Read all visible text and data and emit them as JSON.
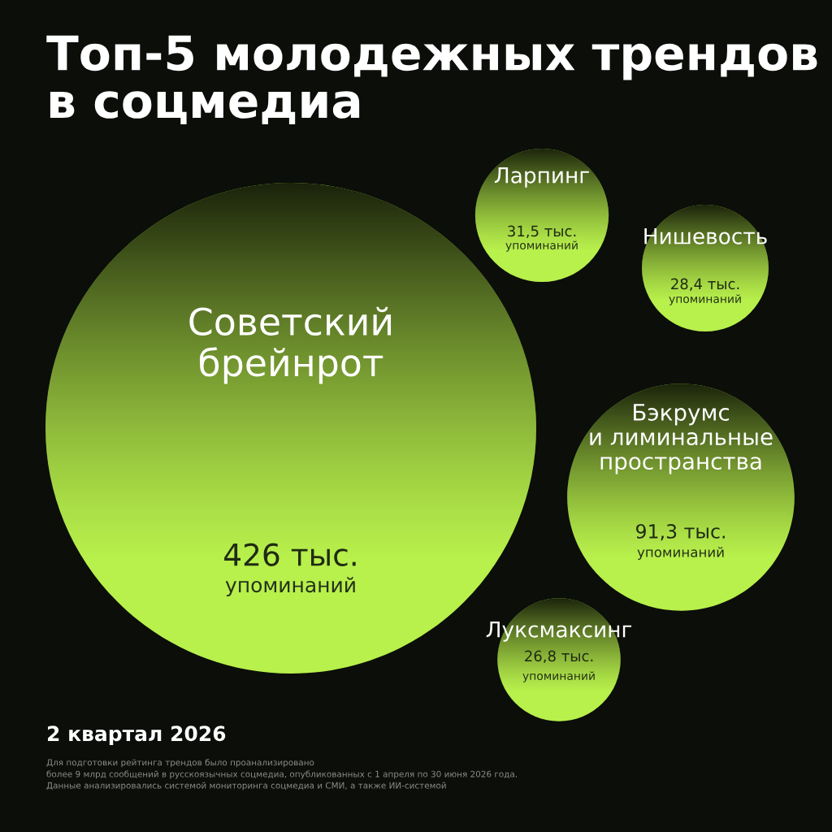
{
  "chart_data": {
    "type": "other",
    "title": "Топ-5 молодежных трендов\nв соцмедиа",
    "subtitle": "2 квартал 2026",
    "categories": [
      "Советский\nбрейнрот",
      "Бэкрумс\nи лиминальные\nпространства",
      "Ларпинг",
      "Нишевость",
      "Луксмаксинг"
    ],
    "values": [
      426,
      91.3,
      31.5,
      28.4,
      26.8
    ],
    "value_labels": [
      "426 тыс.\nупоминаний",
      "91,3 тыс.\nупоминаний",
      "31,5 тыс.\nупоминаний",
      "28,4 тыс.\nупоминаний",
      "26,8 тыс.\nупоминаний"
    ],
    "colors": [
      "#b8f04c",
      "#b8f04c",
      "#b8f04c",
      "#b8f04c",
      "#b8f04c"
    ],
    "annotations": [
      "Для подготовки рейтинга трендов было проанализировано\nболее 9 млрд сообщений в русскоязычных соцмедиа, опубликованных с 1 апреля по 30 июня 2026 года.\nДанные анализировались системой мониторинга соцмедиа и СМИ, а также ИИ-системой"
    ]
  }
}
